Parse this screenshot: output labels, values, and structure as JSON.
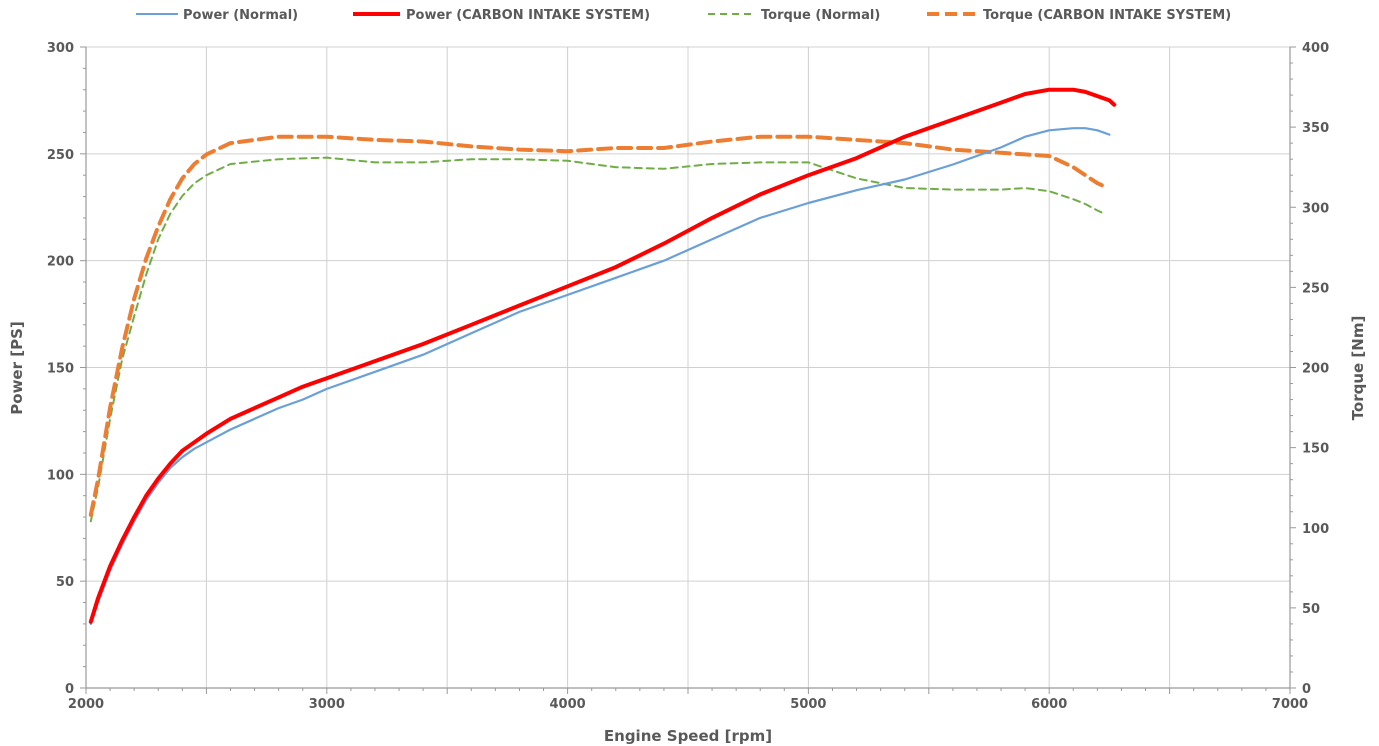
{
  "chart_data": {
    "type": "line",
    "xlabel": "Engine Speed [rpm]",
    "ylabel": "Power [PS]",
    "y2label": "Torque [Nm]",
    "xlim": [
      2000,
      7000
    ],
    "ylim": [
      0,
      300
    ],
    "y2lim": [
      0,
      400
    ],
    "x_ticks": [
      "2000",
      "3000",
      "4000",
      "5000",
      "6000",
      "7000"
    ],
    "y_ticks": [
      "0",
      "50",
      "100",
      "150",
      "200",
      "250",
      "300"
    ],
    "y2_ticks": [
      "0",
      "50",
      "100",
      "150",
      "200",
      "250",
      "300",
      "350",
      "400"
    ],
    "grid": true,
    "legend_position": "top",
    "series": [
      {
        "name": "Power (Normal)",
        "axis": "left",
        "color": "#6a9fd8",
        "style": "solid",
        "x": [
          2020,
          2050,
          2100,
          2150,
          2200,
          2250,
          2300,
          2350,
          2400,
          2450,
          2500,
          2600,
          2700,
          2800,
          2900,
          3000,
          3200,
          3400,
          3600,
          3800,
          4000,
          4200,
          4400,
          4600,
          4800,
          5000,
          5200,
          5400,
          5600,
          5800,
          5900,
          6000,
          6100,
          6150,
          6200,
          6250
        ],
        "values": [
          30,
          40,
          55,
          67,
          78,
          88,
          96,
          103,
          108,
          112,
          115,
          121,
          126,
          131,
          135,
          140,
          148,
          156,
          166,
          176,
          184,
          192,
          200,
          210,
          220,
          227,
          233,
          238,
          245,
          253,
          258,
          261,
          262,
          262,
          261,
          259
        ]
      },
      {
        "name": "Power (CARBON INTAKE SYSTEM)",
        "axis": "left",
        "color": "#ff0000",
        "style": "solid",
        "x": [
          2020,
          2050,
          2100,
          2150,
          2200,
          2250,
          2300,
          2350,
          2400,
          2450,
          2500,
          2600,
          2700,
          2800,
          2900,
          3000,
          3200,
          3400,
          3600,
          3800,
          4000,
          4200,
          4400,
          4600,
          4800,
          5000,
          5200,
          5400,
          5600,
          5800,
          5900,
          6000,
          6050,
          6100,
          6150,
          6200,
          6250,
          6270
        ],
        "values": [
          31,
          42,
          57,
          69,
          80,
          90,
          98,
          105,
          111,
          115,
          119,
          126,
          131,
          136,
          141,
          145,
          153,
          161,
          170,
          179,
          188,
          197,
          208,
          220,
          231,
          240,
          248,
          258,
          266,
          274,
          278,
          280,
          280,
          280,
          279,
          277,
          275,
          273
        ]
      },
      {
        "name": "Torque (Normal)",
        "axis": "right",
        "color": "#70ad47",
        "style": "dashed",
        "x": [
          2020,
          2050,
          2100,
          2150,
          2200,
          2250,
          2300,
          2350,
          2400,
          2450,
          2500,
          2600,
          2800,
          3000,
          3200,
          3400,
          3600,
          3800,
          4000,
          4200,
          4400,
          4600,
          4800,
          5000,
          5200,
          5400,
          5600,
          5800,
          5900,
          6000,
          6100,
          6150,
          6200,
          6230
        ],
        "values": [
          104,
          125,
          168,
          205,
          232,
          258,
          280,
          296,
          307,
          315,
          320,
          327,
          330,
          331,
          328,
          328,
          330,
          330,
          329,
          325,
          324,
          327,
          328,
          328,
          318,
          312,
          311,
          311,
          312,
          310,
          305,
          302,
          298,
          296
        ]
      },
      {
        "name": "Torque (CARBON INTAKE SYSTEM)",
        "axis": "right",
        "color": "#ed7d31",
        "style": "dashed",
        "x": [
          2020,
          2050,
          2100,
          2150,
          2200,
          2250,
          2300,
          2350,
          2400,
          2450,
          2500,
          2600,
          2800,
          3000,
          3200,
          3400,
          3600,
          3800,
          4000,
          4200,
          4400,
          4600,
          4800,
          5000,
          5200,
          5400,
          5600,
          5800,
          5900,
          6000,
          6100,
          6150,
          6200,
          6230
        ],
        "values": [
          108,
          130,
          175,
          212,
          243,
          268,
          288,
          305,
          318,
          327,
          333,
          340,
          344,
          344,
          342,
          341,
          338,
          336,
          335,
          337,
          337,
          341,
          344,
          344,
          342,
          340,
          336,
          334,
          333,
          332,
          325,
          320,
          315,
          313
        ]
      }
    ]
  }
}
